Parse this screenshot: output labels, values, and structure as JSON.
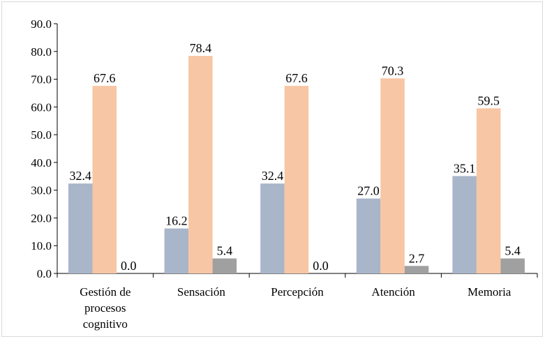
{
  "chart_data": {
    "type": "bar",
    "categories": [
      [
        "Gestión de",
        "procesos",
        "cognitivo"
      ],
      [
        "Sensación"
      ],
      [
        "Percepción"
      ],
      [
        "Atención"
      ],
      [
        "Memoria"
      ]
    ],
    "series": [
      {
        "color": "#a9b5c9",
        "values": [
          32.4,
          16.2,
          32.4,
          27.0,
          35.1
        ]
      },
      {
        "color": "#f7c6a4",
        "values": [
          67.6,
          78.4,
          67.6,
          70.3,
          59.5
        ]
      },
      {
        "color": "#a0a0a0",
        "values": [
          0.0,
          5.4,
          0.0,
          2.7,
          5.4
        ]
      }
    ],
    "ylim": [
      0,
      90
    ],
    "yticks": [
      0.0,
      10.0,
      20.0,
      30.0,
      40.0,
      50.0,
      60.0,
      70.0,
      80.0,
      90.0
    ],
    "grid": false,
    "legend": "none"
  }
}
